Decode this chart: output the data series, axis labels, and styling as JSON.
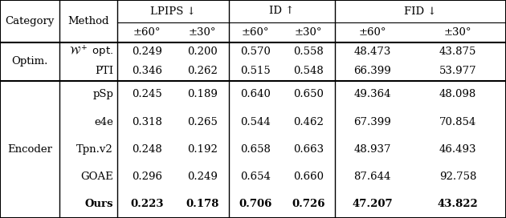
{
  "categories": [
    {
      "name": "Optim.",
      "rows": [
        {
          "method": "$\\mathcal{W}^+$ opt.",
          "is_wplus": true,
          "values": [
            "0.249",
            "0.200",
            "0.570",
            "0.558",
            "48.473",
            "43.875"
          ],
          "bold": false
        },
        {
          "method": "PTI",
          "is_wplus": false,
          "values": [
            "0.346",
            "0.262",
            "0.515",
            "0.548",
            "66.399",
            "53.977"
          ],
          "bold": false
        }
      ]
    },
    {
      "name": "Encoder",
      "rows": [
        {
          "method": "pSp",
          "is_wplus": false,
          "values": [
            "0.245",
            "0.189",
            "0.640",
            "0.650",
            "49.364",
            "48.098"
          ],
          "bold": false
        },
        {
          "method": "e4e",
          "is_wplus": false,
          "values": [
            "0.318",
            "0.265",
            "0.544",
            "0.462",
            "67.399",
            "70.854"
          ],
          "bold": false
        },
        {
          "method": "Tpn.v2",
          "is_wplus": false,
          "values": [
            "0.248",
            "0.192",
            "0.658",
            "0.663",
            "48.937",
            "46.493"
          ],
          "bold": false
        },
        {
          "method": "GOAE",
          "is_wplus": false,
          "values": [
            "0.296",
            "0.249",
            "0.654",
            "0.660",
            "87.644",
            "92.758"
          ],
          "bold": false
        },
        {
          "method": "Ours",
          "is_wplus": false,
          "values": [
            "0.223",
            "0.178",
            "0.706",
            "0.726",
            "47.207",
            "43.822"
          ],
          "bold": true
        }
      ]
    }
  ],
  "col_group_labels": [
    "LPIPS ↓",
    "ID ↑",
    "FID ↓"
  ],
  "angle_labels": [
    "±60°",
    "±30°"
  ],
  "bg_color": "#ffffff",
  "text_color": "#000000"
}
